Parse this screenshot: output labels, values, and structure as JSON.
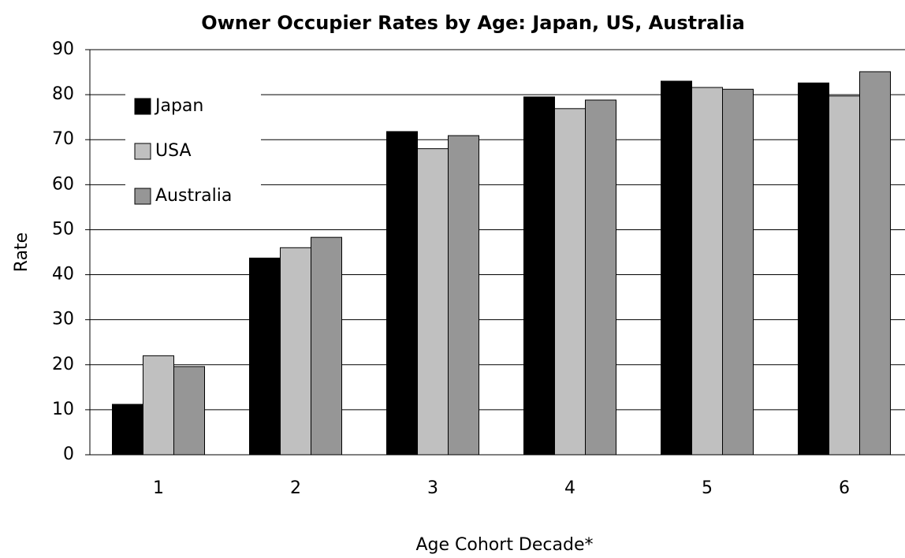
{
  "chart_data": {
    "type": "bar",
    "title": "Owner Occupier Rates by Age: Japan, US, Australia",
    "x_label": "Age Cohort Decade*",
    "y_label": "Rate",
    "categories": [
      "1",
      "2",
      "3",
      "4",
      "5",
      "6"
    ],
    "series": [
      {
        "name": "Japan",
        "color": "#000000",
        "values": [
          11.2,
          43.7,
          71.8,
          79.5,
          83,
          82.6
        ]
      },
      {
        "name": "USA",
        "color": "#c0c0c0",
        "values": [
          22,
          46,
          68,
          76.9,
          81.6,
          79.7
        ]
      },
      {
        "name": "Australia",
        "color": "#969696",
        "values": [
          19.6,
          48.3,
          70.9,
          78.8,
          81.2,
          85.1
        ]
      }
    ],
    "ylim": [
      0,
      90
    ],
    "yticks": [
      0,
      10,
      20,
      30,
      40,
      50,
      60,
      70,
      80,
      90
    ],
    "grid": true,
    "legend": "top-left"
  }
}
